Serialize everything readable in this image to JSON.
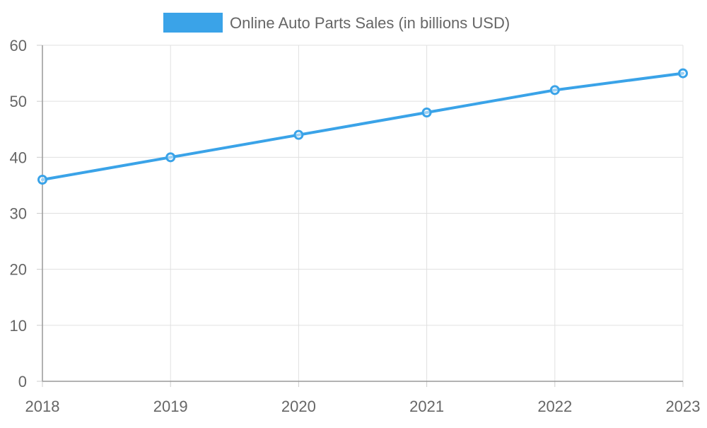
{
  "chart_data": {
    "type": "line",
    "title": "",
    "xlabel": "",
    "ylabel": "",
    "x": [
      "2018",
      "2019",
      "2020",
      "2021",
      "2022",
      "2023"
    ],
    "series": [
      {
        "name": "Online Auto Parts Sales (in billions USD)",
        "values": [
          36,
          40,
          44,
          48,
          52,
          55
        ],
        "color": "#3aa3e8"
      }
    ],
    "ylim": [
      0,
      60
    ],
    "yticks": [
      0,
      10,
      20,
      30,
      40,
      50,
      60
    ],
    "grid": true,
    "legend_position": "top-center"
  }
}
